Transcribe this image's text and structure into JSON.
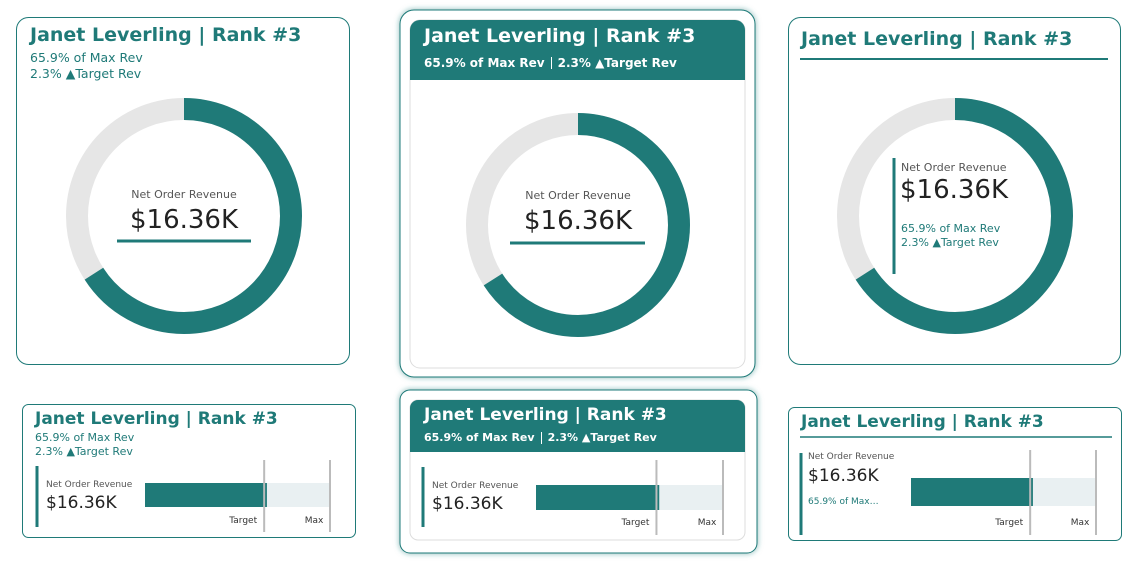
{
  "kpi": {
    "title": "Janet Leverling | Rank #3",
    "share_of_max_text": "65.9% of Max Rev",
    "vs_target_text": "2.3% ▲Target Rev",
    "measure_label": "Net Order Revenue",
    "value_label": "$16.36K",
    "value": 16360,
    "max": 24825,
    "target": 15992,
    "target_label": "Target",
    "max_label": "Max"
  }
}
